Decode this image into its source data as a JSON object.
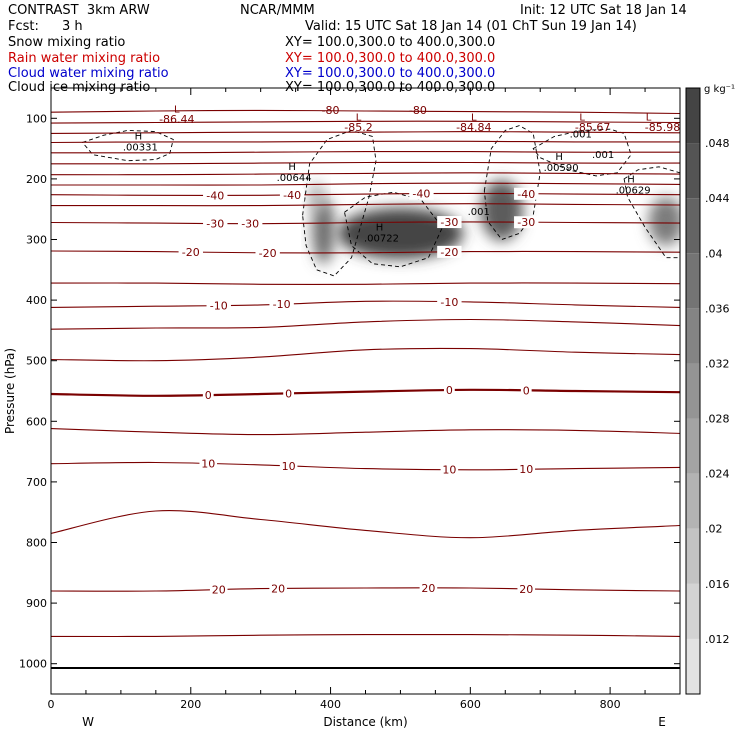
{
  "header": {
    "model": "CONTRAST  3km ARW",
    "org": "NCAR/MMM",
    "init": "Init: 12 UTC Sat 18 Jan 14",
    "fcst_label": "Fcst:",
    "fcst_value": "3 h",
    "valid": "Valid: 15 UTC Sat 18 Jan 14 (01 ChT Sun 19 Jan 14)",
    "fields": [
      {
        "name": "Snow mixing ratio",
        "xy": "XY= 100.0,300.0 to 400.0,300.0",
        "color": "#000000"
      },
      {
        "name": "Rain water mixing ratio",
        "xy": "XY= 100.0,300.0 to 400.0,300.0",
        "color": "#cc0000"
      },
      {
        "name": "Cloud water mixing ratio",
        "xy": "XY= 100.0,300.0 to 400.0,300.0",
        "color": "#0000cc"
      },
      {
        "name": "Cloud ice mixing ratio",
        "xy": "XY= 100.0,300.0 to 400.0,300.0",
        "color": "#000000"
      }
    ]
  },
  "chart_data": {
    "type": "contour",
    "xlabel": "Distance (km)",
    "ylabel": "Pressure (hPa)",
    "xlim": [
      0,
      900
    ],
    "ylim": [
      1050,
      50
    ],
    "x_ticks": [
      0,
      200,
      400,
      600,
      800
    ],
    "x_tick_labels": [
      "0",
      "200",
      "400",
      "600",
      "800"
    ],
    "y_ticks": [
      100,
      200,
      300,
      400,
      500,
      600,
      700,
      800,
      900,
      1000
    ],
    "y_tick_labels": [
      "100",
      "200",
      "300",
      "400",
      "500",
      "600",
      "700",
      "800",
      "900",
      "1000"
    ],
    "side_labels": {
      "left": "W",
      "right": "E"
    },
    "colorbar": {
      "unit": "g kg⁻¹",
      "ticks": [
        0.012,
        0.016,
        0.02,
        0.024,
        0.028,
        0.032,
        0.036,
        0.04,
        0.044,
        0.048
      ],
      "tick_labels": [
        ".012",
        ".016",
        ".02",
        ".024",
        ".028",
        ".032",
        ".036",
        ".04",
        ".044",
        ".048"
      ],
      "range": [
        0.008,
        0.052
      ]
    },
    "temperature_contours": [
      {
        "x": [
          0,
          150,
          300,
          450,
          600,
          750,
          900
        ],
        "p": [
          90,
          88,
          87,
          88,
          89,
          90,
          92
        ],
        "label": "",
        "label_x": []
      },
      {
        "x": [
          0,
          150,
          300,
          450,
          600,
          750,
          900
        ],
        "p": [
          108,
          107,
          106,
          105,
          105,
          106,
          107
        ],
        "label": "",
        "label_x": []
      },
      {
        "x": [
          0,
          150,
          300,
          450,
          600,
          750,
          900
        ],
        "p": [
          125,
          124,
          123,
          123,
          122,
          123,
          124
        ],
        "label": "",
        "label_x": []
      },
      {
        "x": [
          0,
          150,
          300,
          450,
          600,
          750,
          900
        ],
        "p": [
          140,
          139,
          139,
          138,
          138,
          139,
          139
        ],
        "label": "",
        "label_x": []
      },
      {
        "x": [
          0,
          150,
          300,
          450,
          600,
          750,
          900
        ],
        "p": [
          157,
          157,
          156,
          155,
          155,
          156,
          156
        ],
        "label": "",
        "label_x": []
      },
      {
        "x": [
          0,
          150,
          300,
          450,
          600,
          750,
          900
        ],
        "p": [
          175,
          175,
          174,
          173,
          173,
          174,
          174
        ],
        "label": "",
        "label_x": []
      },
      {
        "x": [
          0,
          150,
          300,
          450,
          600,
          750,
          900
        ],
        "p": [
          193,
          193,
          192,
          191,
          190,
          191,
          192
        ],
        "label": "",
        "label_x": []
      },
      {
        "x": [
          0,
          150,
          300,
          450,
          600,
          750,
          900
        ],
        "p": [
          210,
          210,
          210,
          208,
          207,
          208,
          209
        ],
        "label": "",
        "label_x": []
      },
      {
        "x": [
          0,
          150,
          300,
          450,
          600,
          750,
          900
        ],
        "p": [
          226,
          227,
          227,
          225,
          224,
          225,
          226
        ],
        "label": "-40",
        "label_x": [
          235,
          345,
          530,
          680
        ]
      },
      {
        "x": [
          0,
          150,
          300,
          450,
          600,
          750,
          900
        ],
        "p": [
          244,
          244,
          244,
          242,
          241,
          242,
          243
        ],
        "label": "",
        "label_x": []
      },
      {
        "x": [
          0,
          150,
          300,
          450,
          600,
          750,
          900
        ],
        "p": [
          272,
          273,
          274,
          272,
          271,
          272,
          273
        ],
        "label": "-30",
        "label_x": [
          235,
          285,
          570,
          680
        ]
      },
      {
        "x": [
          0,
          150,
          300,
          450,
          600,
          750,
          900
        ],
        "p": [
          319,
          320,
          322,
          322,
          320,
          320,
          321
        ],
        "label": "-20",
        "label_x": [
          200,
          310,
          570
        ]
      },
      {
        "x": [
          0,
          150,
          300,
          450,
          600,
          750,
          900
        ],
        "p": [
          372,
          372,
          374,
          374,
          372,
          372,
          373
        ],
        "label": "",
        "label_x": []
      },
      {
        "x": [
          0,
          150,
          300,
          450,
          600,
          750,
          900
        ],
        "p": [
          412,
          410,
          408,
          402,
          403,
          408,
          412
        ],
        "label": "-10",
        "label_x": [
          240,
          330,
          570
        ]
      },
      {
        "x": [
          0,
          150,
          300,
          450,
          600,
          750,
          900
        ],
        "p": [
          448,
          446,
          445,
          436,
          432,
          436,
          442
        ],
        "label": "",
        "label_x": []
      },
      {
        "x": [
          0,
          150,
          300,
          450,
          600,
          750,
          900
        ],
        "p": [
          498,
          500,
          494,
          482,
          480,
          486,
          490
        ],
        "label": "",
        "label_x": []
      },
      {
        "x": [
          0,
          150,
          300,
          450,
          600,
          750,
          900
        ],
        "p": [
          555,
          558,
          555,
          551,
          548,
          550,
          552
        ],
        "label": "0",
        "label_x": [
          225,
          340,
          570,
          680
        ],
        "bold": true
      },
      {
        "x": [
          0,
          150,
          300,
          450,
          600,
          750,
          900
        ],
        "p": [
          612,
          618,
          622,
          618,
          614,
          615,
          620
        ],
        "label": "",
        "label_x": []
      },
      {
        "x": [
          0,
          150,
          300,
          450,
          600,
          750,
          900
        ],
        "p": [
          670,
          668,
          672,
          678,
          680,
          678,
          676
        ],
        "label": "10",
        "label_x": [
          225,
          340,
          570,
          680
        ]
      },
      {
        "x": [
          0,
          150,
          300,
          450,
          600,
          750,
          900
        ],
        "p": [
          785,
          748,
          762,
          780,
          792,
          780,
          772
        ],
        "label": "",
        "label_x": []
      },
      {
        "x": [
          0,
          150,
          300,
          450,
          600,
          750,
          900
        ],
        "p": [
          880,
          880,
          876,
          875,
          875,
          878,
          880
        ],
        "label": "20",
        "label_x": [
          240,
          325,
          540,
          680
        ]
      },
      {
        "x": [
          0,
          150,
          300,
          450,
          600,
          750,
          900
        ],
        "p": [
          955,
          955,
          953,
          952,
          952,
          953,
          955
        ],
        "label": "",
        "label_x": []
      }
    ],
    "top_labels": [
      {
        "text": "-86.44",
        "x": 180,
        "p": 101
      },
      {
        "text": "-80",
        "x": 400,
        "p": 86
      },
      {
        "text": "-80",
        "x": 525,
        "p": 86
      },
      {
        "text": "-85.2",
        "x": 440,
        "p": 114
      },
      {
        "text": "-84.84",
        "x": 605,
        "p": 114
      },
      {
        "text": "-85.67",
        "x": 775,
        "p": 114
      },
      {
        "text": "-85.98",
        "x": 875,
        "p": 114
      }
    ],
    "lows": [
      {
        "x": 180,
        "p": 84
      },
      {
        "x": 440,
        "p": 97
      },
      {
        "x": 605,
        "p": 97
      },
      {
        "x": 760,
        "p": 97
      },
      {
        "x": 855,
        "p": 97
      }
    ],
    "highs": [
      {
        "x": 125,
        "p": 135,
        "value": ".00331"
      },
      {
        "x": 345,
        "p": 185,
        "value": ".00644"
      },
      {
        "x": 470,
        "p": 285,
        "value": ".00722"
      },
      {
        "x": 727,
        "p": 169,
        "value": ".00590"
      },
      {
        "x": 830,
        "p": 206,
        "value": ".00629"
      }
    ],
    "ice_labels": [
      {
        "text": ".001",
        "x": 612,
        "p": 253
      },
      {
        "text": ".001",
        "x": 758,
        "p": 125
      },
      {
        "text": ".001",
        "x": 790,
        "p": 159
      }
    ],
    "snow_blobs": [
      {
        "x": 500,
        "p": 290,
        "rx": 90,
        "rp": 42,
        "value": 0.05
      },
      {
        "x": 390,
        "p": 285,
        "rx": 16,
        "rp": 55,
        "value": 0.04
      },
      {
        "x": 645,
        "p": 252,
        "rx": 30,
        "rp": 50,
        "value": 0.044
      },
      {
        "x": 880,
        "p": 270,
        "rx": 25,
        "rp": 40,
        "value": 0.036
      },
      {
        "x": 380,
        "p": 230,
        "rx": 10,
        "rp": 25,
        "value": 0.024
      }
    ],
    "surface_pressure": [
      {
        "x": 0,
        "p": 1007
      },
      {
        "x": 900,
        "p": 1007
      }
    ]
  }
}
